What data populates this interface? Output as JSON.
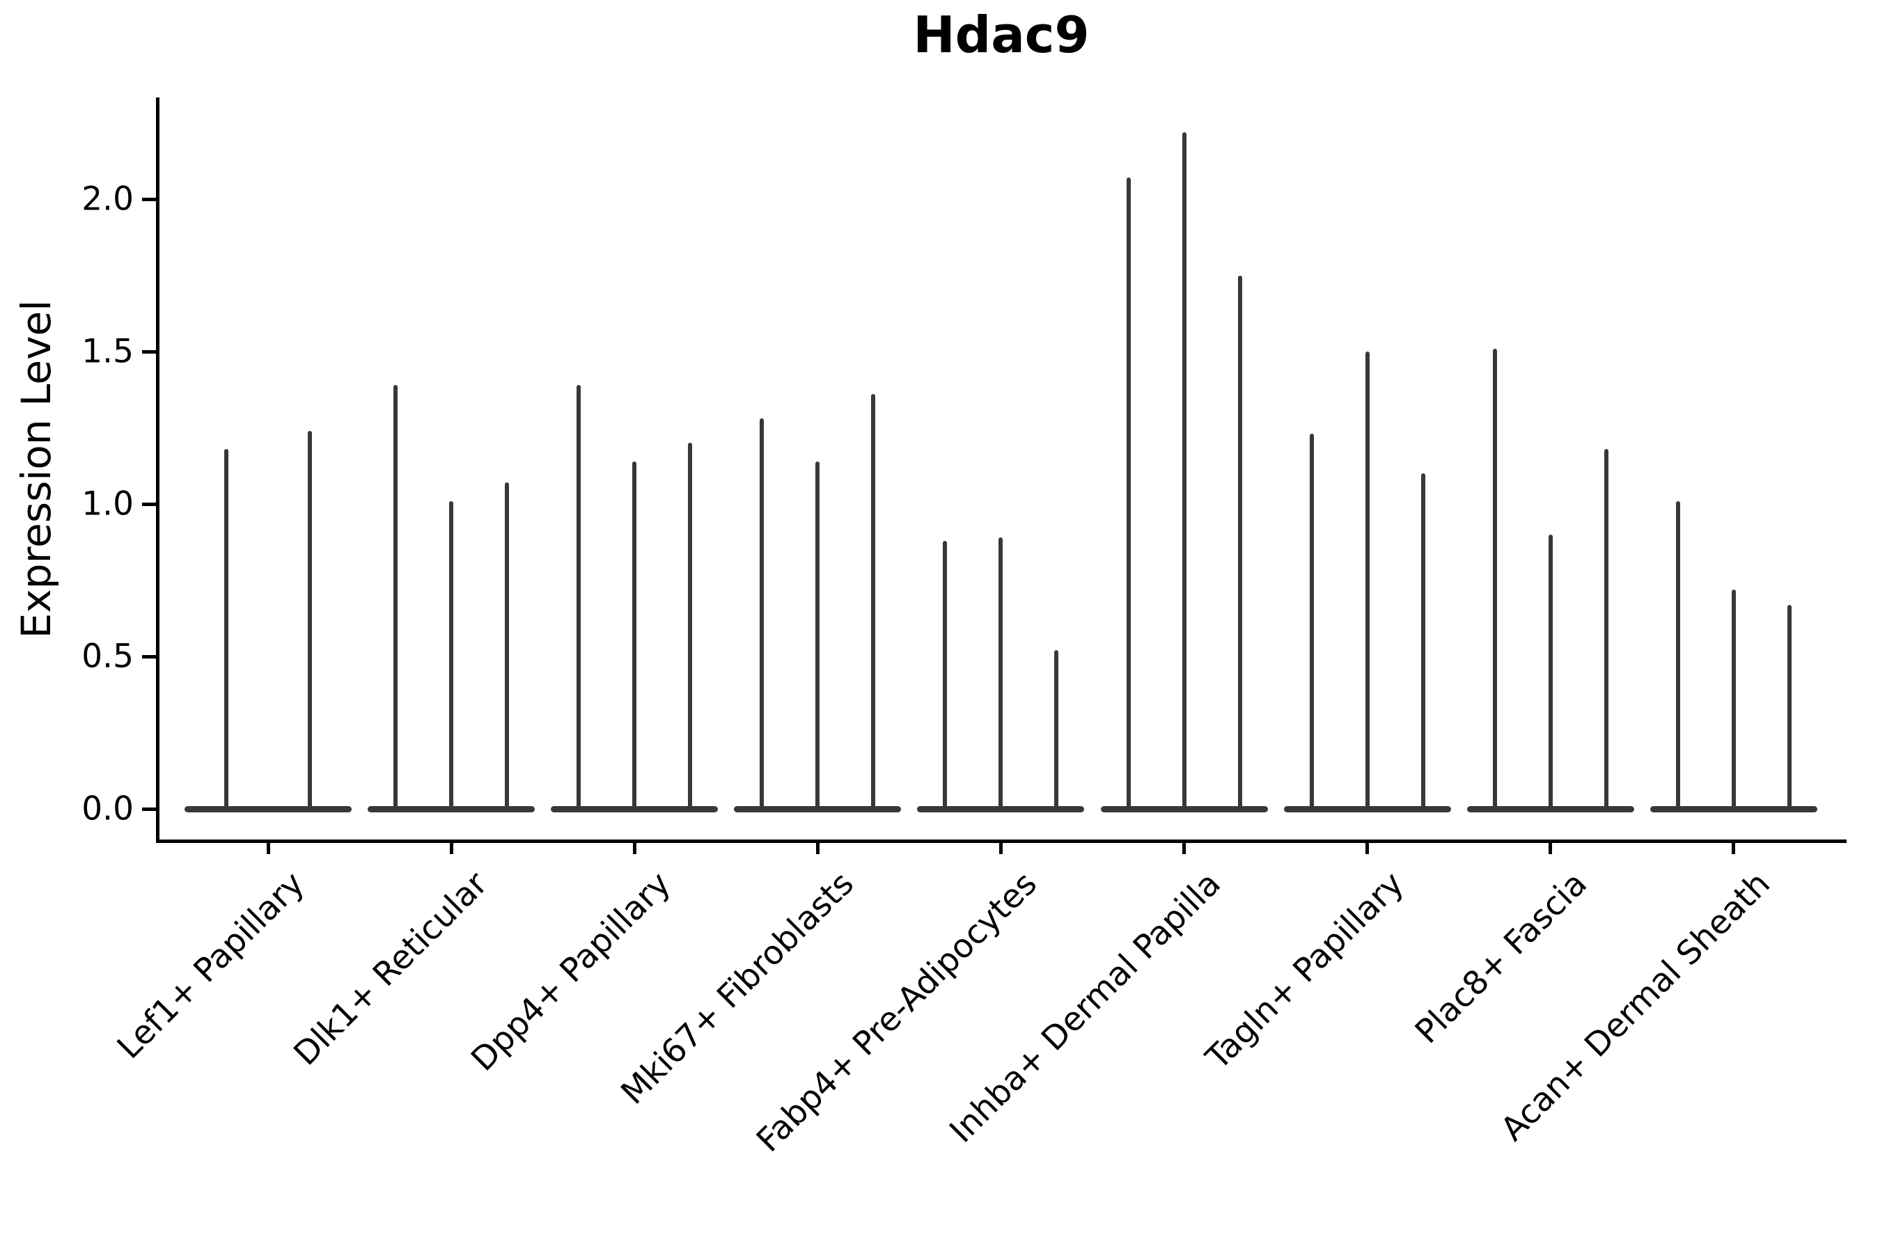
{
  "figure": {
    "title": "Hdac9",
    "y_axis_label": "Expression Level"
  },
  "chart_data": {
    "type": "violin",
    "title": "Hdac9",
    "xlabel": "",
    "ylabel": "Expression Level",
    "ylim": [
      -0.11,
      2.33
    ],
    "yticks": [
      0.0,
      0.5,
      1.0,
      1.5,
      2.0
    ],
    "ytick_labels": [
      "0.0",
      "0.5",
      "1.0",
      "1.5",
      "2.0"
    ],
    "grid": false,
    "legend_position": "none",
    "style_note": "narrow spike-like violins: flat body at 0 with thin vertical line up to the max expression value",
    "categories": [
      "Lef1+ Papillary",
      "Dlk1+ Reticular",
      "Dpp4+ Papillary",
      "Mki67+ Fibroblasts",
      "Fabp4+ Pre-Adipocytes",
      "Inhba+ Dermal Papilla",
      "Tagln+ Papillary",
      "Plac8+ Fascia",
      "Acan+ Dermal Sheath"
    ],
    "series": [
      {
        "category": "Lef1+ Papillary",
        "violin_maxima": [
          1.18,
          1.24
        ]
      },
      {
        "category": "Dlk1+ Reticular",
        "violin_maxima": [
          1.39,
          1.01,
          1.07
        ]
      },
      {
        "category": "Dpp4+ Papillary",
        "violin_maxima": [
          1.39,
          1.14,
          1.2
        ]
      },
      {
        "category": "Mki67+ Fibroblasts",
        "violin_maxima": [
          1.28,
          1.14,
          1.36
        ]
      },
      {
        "category": "Fabp4+ Pre-Adipocytes",
        "violin_maxima": [
          0.88,
          0.89,
          0.52
        ]
      },
      {
        "category": "Inhba+ Dermal Papilla",
        "violin_maxima": [
          2.07,
          2.22,
          1.75
        ]
      },
      {
        "category": "Tagln+ Papillary",
        "violin_maxima": [
          1.23,
          1.5,
          1.1
        ]
      },
      {
        "category": "Plac8+ Fascia",
        "violin_maxima": [
          1.51,
          0.9,
          1.18
        ]
      },
      {
        "category": "Acan+ Dermal Sheath",
        "violin_maxima": [
          1.01,
          0.72,
          0.67
        ]
      }
    ],
    "baseline_value": 0.0,
    "colors": {
      "violin": "#383838",
      "axis": "#000000",
      "text": "#000000",
      "background": "#ffffff"
    }
  }
}
